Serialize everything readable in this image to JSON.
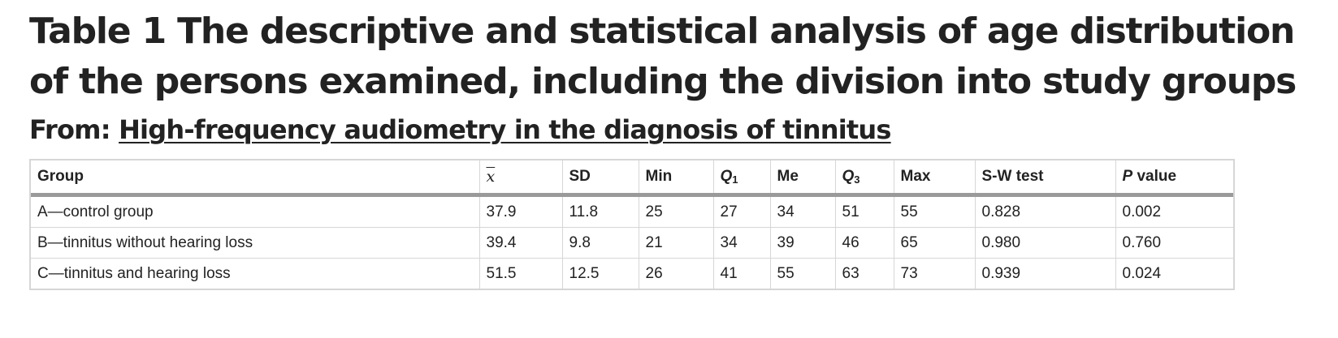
{
  "title": "Table 1 The descriptive and statistical analysis of age distribution of the persons examined, including the division into study groups",
  "from": {
    "prefix": "From:",
    "link_text": "High-frequency audiometry in the diagnosis of tinnitus"
  },
  "table": {
    "headers": {
      "group": "Group",
      "mean": "x",
      "sd": "SD",
      "min": "Min",
      "q1_letter": "Q",
      "q1_sub": "1",
      "me": "Me",
      "q3_letter": "Q",
      "q3_sub": "3",
      "max": "Max",
      "sw": "S-W test",
      "p_letter": "P",
      "p_rest": " value"
    },
    "rows": [
      {
        "group": "A—control group",
        "mean": "37.9",
        "sd": "11.8",
        "min": "25",
        "q1": "27",
        "me": "34",
        "q3": "51",
        "max": "55",
        "sw": "0.828",
        "p": "0.002"
      },
      {
        "group": "B—tinnitus without hearing loss",
        "mean": "39.4",
        "sd": "9.8",
        "min": "21",
        "q1": "34",
        "me": "39",
        "q3": "46",
        "max": "65",
        "sw": "0.980",
        "p": "0.760"
      },
      {
        "group": "C—tinnitus and hearing loss",
        "mean": "51.5",
        "sd": "12.5",
        "min": "26",
        "q1": "41",
        "me": "55",
        "q3": "63",
        "max": "73",
        "sw": "0.939",
        "p": "0.024"
      }
    ]
  }
}
